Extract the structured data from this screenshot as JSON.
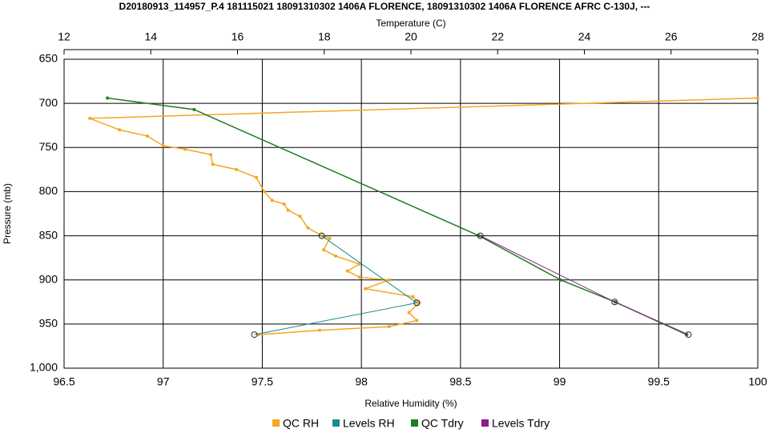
{
  "chart_data": {
    "type": "line",
    "title": "D20180913_114957_P.4 181115021 18091310302 1406A FLORENCE, 18091310302 1406A FLORENCE AFRC C-130J, ---",
    "xlabel": "Relative Humidity (%)",
    "x2label": "Temperature (C)",
    "ylabel": "Pressure (mb)",
    "xlim": [
      96.5,
      100
    ],
    "xticks": [
      96.5,
      97,
      97.5,
      98,
      98.5,
      99,
      99.5,
      100
    ],
    "x2lim": [
      12,
      28
    ],
    "x2ticks": [
      12,
      14,
      16,
      18,
      20,
      22,
      24,
      26,
      28
    ],
    "ylim": [
      650,
      1000
    ],
    "yticks": [
      650,
      700,
      750,
      800,
      850,
      900,
      950,
      {
        "value": 1000,
        "label": "1,000"
      }
    ],
    "y_inverted": true,
    "grid": true,
    "legend": "bottom",
    "series": [
      {
        "name": "QC RH",
        "color": "#f5a623",
        "axis": "x",
        "x": [
          100,
          96.63,
          96.78,
          96.92,
          97.0,
          97.11,
          97.24,
          97.25,
          97.37,
          97.47,
          97.51,
          97.55,
          97.61,
          97.63,
          97.69,
          97.73,
          97.8,
          97.84,
          97.81,
          97.87,
          97.99,
          97.93,
          97.99,
          98.14,
          98.02,
          98.26,
          98.29,
          98.24,
          98.28,
          98.14,
          97.79,
          97.48
        ],
        "values": [
          694,
          717,
          730,
          737,
          748,
          752,
          758,
          769,
          775,
          784,
          800,
          810,
          814,
          821,
          828,
          841,
          850,
          853,
          866,
          873,
          882,
          890,
          897,
          900,
          910,
          919,
          926,
          937,
          946,
          953,
          957,
          962
        ]
      },
      {
        "name": "Levels RH",
        "color": "#1a8c8c",
        "axis": "x",
        "x": [
          97.8,
          98.28,
          97.46
        ],
        "values": [
          850,
          926,
          962
        ]
      },
      {
        "name": "QC Tdry",
        "color": "#1e7d1e",
        "axis": "x2",
        "x": [
          13.0,
          15.0,
          21.57,
          23.45,
          24.71,
          26.36
        ],
        "values": [
          694,
          707,
          850,
          900,
          925,
          962
        ]
      },
      {
        "name": "Levels Tdry",
        "color": "#8b1a8b",
        "axis": "x2",
        "x": [
          21.6,
          24.7,
          26.4
        ],
        "values": [
          850,
          925,
          962
        ]
      }
    ]
  }
}
